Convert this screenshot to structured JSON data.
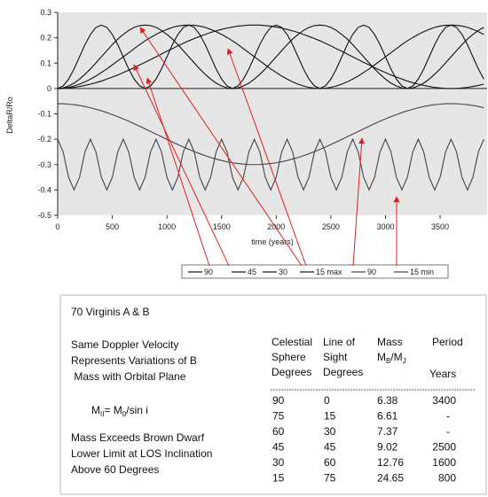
{
  "chart_data": {
    "type": "line",
    "y_label": "DeltaR/Ro",
    "x_label": "time (years)",
    "xlim": [
      0,
      3930
    ],
    "xticks": [
      0,
      500,
      1000,
      1500,
      2000,
      2500,
      3000,
      3500
    ],
    "ylim": [
      -0.5,
      0.3
    ],
    "yticks": [
      0.3,
      0.2,
      0.1,
      0,
      -0.1,
      -0.2,
      -0.3,
      -0.4,
      -0.5
    ],
    "legend": "bottom",
    "x": [
      0,
      50,
      100,
      150,
      200,
      250,
      300,
      350,
      400,
      450,
      500,
      550,
      600,
      650,
      700,
      750,
      800,
      850,
      900,
      950,
      1000,
      1050,
      1100,
      1150,
      1200,
      1250,
      1300,
      1350,
      1400,
      1450,
      1500,
      1550,
      1600,
      1650,
      1700,
      1750,
      1800,
      1850,
      1900,
      1950,
      2000,
      2050,
      2100,
      2150,
      2200,
      2250,
      2300,
      2350,
      2400,
      2450,
      2500,
      2550,
      2600,
      2650,
      2700,
      2750,
      2800,
      2850,
      2900,
      2950,
      3000,
      3050,
      3100,
      3150,
      3200,
      3250,
      3300,
      3350,
      3400,
      3450,
      3500,
      3550,
      3600,
      3650,
      3700,
      3750,
      3800,
      3850,
      3900
    ],
    "series": [
      {
        "name": "90",
        "color": "#111111",
        "values": [
          0,
          0,
          0.002,
          0.004,
          0.008,
          0.012,
          0.017,
          0.023,
          0.029,
          0.037,
          0.045,
          0.053,
          0.063,
          0.072,
          0.082,
          0.093,
          0.103,
          0.114,
          0.125,
          0.136,
          0.147,
          0.157,
          0.168,
          0.178,
          0.188,
          0.197,
          0.205,
          0.213,
          0.221,
          0.227,
          0.233,
          0.238,
          0.242,
          0.246,
          0.248,
          0.25,
          0.25,
          0.25,
          0.248,
          0.246,
          0.242,
          0.238,
          0.233,
          0.227,
          0.221,
          0.213,
          0.205,
          0.197,
          0.188,
          0.178,
          0.168,
          0.157,
          0.147,
          0.136,
          0.125,
          0.114,
          0.103,
          0.093,
          0.082,
          0.072,
          0.063,
          0.053,
          0.045,
          0.037,
          0.029,
          0.023,
          0.017,
          0.012,
          0.008,
          0.004,
          0.002,
          0,
          0,
          0,
          0.002,
          0.004,
          0.008,
          0.012,
          0.017
        ]
      },
      {
        "name": "45",
        "color": "#111111",
        "values": [
          0,
          0.001,
          0.004,
          0.01,
          0.017,
          0.026,
          0.037,
          0.049,
          0.063,
          0.077,
          0.093,
          0.109,
          0.125,
          0.141,
          0.157,
          0.173,
          0.188,
          0.201,
          0.213,
          0.224,
          0.233,
          0.241,
          0.246,
          0.249,
          0.25,
          0.249,
          0.246,
          0.241,
          0.233,
          0.224,
          0.213,
          0.201,
          0.188,
          0.173,
          0.157,
          0.141,
          0.125,
          0.109,
          0.093,
          0.077,
          0.063,
          0.049,
          0.037,
          0.026,
          0.017,
          0.01,
          0.004,
          0.001,
          0,
          0.001,
          0.004,
          0.01,
          0.017,
          0.026,
          0.037,
          0.049,
          0.063,
          0.077,
          0.093,
          0.109,
          0.125,
          0.141,
          0.157,
          0.173,
          0.188,
          0.201,
          0.213,
          0.224,
          0.233,
          0.241,
          0.246,
          0.249,
          0.25,
          0.249,
          0.246,
          0.241,
          0.233,
          0.224,
          0.213
        ]
      },
      {
        "name": "30",
        "color": "#111111",
        "values": [
          0,
          0.002,
          0.01,
          0.021,
          0.037,
          0.056,
          0.077,
          0.101,
          0.125,
          0.149,
          0.173,
          0.195,
          0.213,
          0.229,
          0.241,
          0.248,
          0.25,
          0.248,
          0.241,
          0.229,
          0.213,
          0.195,
          0.173,
          0.149,
          0.125,
          0.101,
          0.077,
          0.056,
          0.037,
          0.021,
          0.01,
          0.002,
          0,
          0.002,
          0.01,
          0.021,
          0.037,
          0.056,
          0.077,
          0.101,
          0.125,
          0.149,
          0.173,
          0.195,
          0.213,
          0.229,
          0.241,
          0.248,
          0.25,
          0.248,
          0.241,
          0.229,
          0.213,
          0.195,
          0.173,
          0.149,
          0.125,
          0.101,
          0.077,
          0.056,
          0.037,
          0.021,
          0.01,
          0.002,
          0,
          0.002,
          0.01,
          0.021,
          0.037,
          0.056,
          0.077,
          0.101,
          0.125,
          0.149,
          0.173,
          0.195,
          0.213,
          0.229,
          0.241
        ]
      },
      {
        "name": "15 max",
        "color": "#111111",
        "values": [
          0,
          0.01,
          0.037,
          0.077,
          0.125,
          0.173,
          0.213,
          0.241,
          0.25,
          0.241,
          0.213,
          0.173,
          0.125,
          0.077,
          0.037,
          0.01,
          0,
          0.01,
          0.037,
          0.077,
          0.125,
          0.173,
          0.213,
          0.241,
          0.25,
          0.241,
          0.213,
          0.173,
          0.125,
          0.077,
          0.037,
          0.01,
          0,
          0.01,
          0.037,
          0.077,
          0.125,
          0.173,
          0.213,
          0.241,
          0.25,
          0.241,
          0.213,
          0.173,
          0.125,
          0.077,
          0.037,
          0.01,
          0,
          0.01,
          0.037,
          0.077,
          0.125,
          0.173,
          0.213,
          0.241,
          0.25,
          0.241,
          0.213,
          0.173,
          0.125,
          0.077,
          0.037,
          0.01,
          0,
          0.01,
          0.037,
          0.077,
          0.125,
          0.173,
          0.213,
          0.241,
          0.25,
          0.241,
          0.213,
          0.173,
          0.125,
          0.077,
          0.037
        ]
      },
      {
        "name": "90",
        "color": "#444444",
        "values": [
          -0.06,
          -0.06,
          -0.062,
          -0.064,
          -0.067,
          -0.071,
          -0.076,
          -0.082,
          -0.088,
          -0.095,
          -0.103,
          -0.111,
          -0.12,
          -0.129,
          -0.139,
          -0.149,
          -0.159,
          -0.17,
          -0.18,
          -0.19,
          -0.201,
          -0.211,
          -0.221,
          -0.231,
          -0.24,
          -0.249,
          -0.257,
          -0.265,
          -0.272,
          -0.278,
          -0.284,
          -0.289,
          -0.293,
          -0.296,
          -0.298,
          -0.3,
          -0.3,
          -0.3,
          -0.298,
          -0.296,
          -0.293,
          -0.289,
          -0.284,
          -0.278,
          -0.272,
          -0.265,
          -0.257,
          -0.249,
          -0.24,
          -0.231,
          -0.221,
          -0.211,
          -0.201,
          -0.19,
          -0.18,
          -0.17,
          -0.159,
          -0.149,
          -0.139,
          -0.129,
          -0.12,
          -0.111,
          -0.103,
          -0.095,
          -0.088,
          -0.082,
          -0.076,
          -0.071,
          -0.067,
          -0.064,
          -0.062,
          -0.06,
          -0.06,
          -0.06,
          -0.062,
          -0.064,
          -0.067,
          -0.071,
          -0.076
        ]
      },
      {
        "name": "15 min",
        "color": "#444444",
        "values": [
          -0.2,
          -0.25,
          -0.35,
          -0.4,
          -0.35,
          -0.25,
          -0.2,
          -0.25,
          -0.35,
          -0.4,
          -0.35,
          -0.25,
          -0.2,
          -0.25,
          -0.35,
          -0.4,
          -0.35,
          -0.25,
          -0.2,
          -0.25,
          -0.35,
          -0.4,
          -0.35,
          -0.25,
          -0.2,
          -0.25,
          -0.35,
          -0.4,
          -0.35,
          -0.25,
          -0.2,
          -0.25,
          -0.35,
          -0.4,
          -0.35,
          -0.25,
          -0.2,
          -0.25,
          -0.35,
          -0.4,
          -0.35,
          -0.25,
          -0.2,
          -0.25,
          -0.35,
          -0.4,
          -0.35,
          -0.25,
          -0.2,
          -0.25,
          -0.35,
          -0.4,
          -0.35,
          -0.25,
          -0.2,
          -0.25,
          -0.35,
          -0.4,
          -0.35,
          -0.25,
          -0.2,
          -0.25,
          -0.35,
          -0.4,
          -0.35,
          -0.25,
          -0.2,
          -0.25,
          -0.35,
          -0.4,
          -0.35,
          -0.25,
          -0.2,
          -0.25,
          -0.35,
          -0.4,
          -0.35,
          -0.25,
          -0.2
        ]
      }
    ]
  },
  "panel": {
    "title": "70 Virginis A & B",
    "note": [
      "Same Doppler Velocity",
      "Represents Variations of B",
      " Mass with Orbital Plane"
    ],
    "formula": [
      "M",
      "II",
      "= M",
      "0",
      "/sin i"
    ],
    "note2": [
      "Mass Exceeds Brown Dwarf",
      "Lower Limit at LOS Inclination",
      "Above 60 Degrees"
    ],
    "table": {
      "celestial": [
        "Celestial",
        "Sphere",
        "Degrees"
      ],
      "los": [
        "Line of",
        "Sight",
        "Degrees"
      ],
      "mass": "Mass",
      "mass_unit": [
        "M",
        "B",
        "/M",
        "J"
      ],
      "period": "Period",
      "period_unit": "Years",
      "rows": [
        [
          90,
          0,
          6.38,
          3400
        ],
        [
          75,
          15,
          6.61,
          "-"
        ],
        [
          60,
          30,
          7.37,
          "-"
        ],
        [
          45,
          45,
          9.02,
          2500
        ],
        [
          30,
          60,
          12.76,
          1600
        ],
        [
          15,
          75,
          24.65,
          800
        ]
      ]
    }
  }
}
